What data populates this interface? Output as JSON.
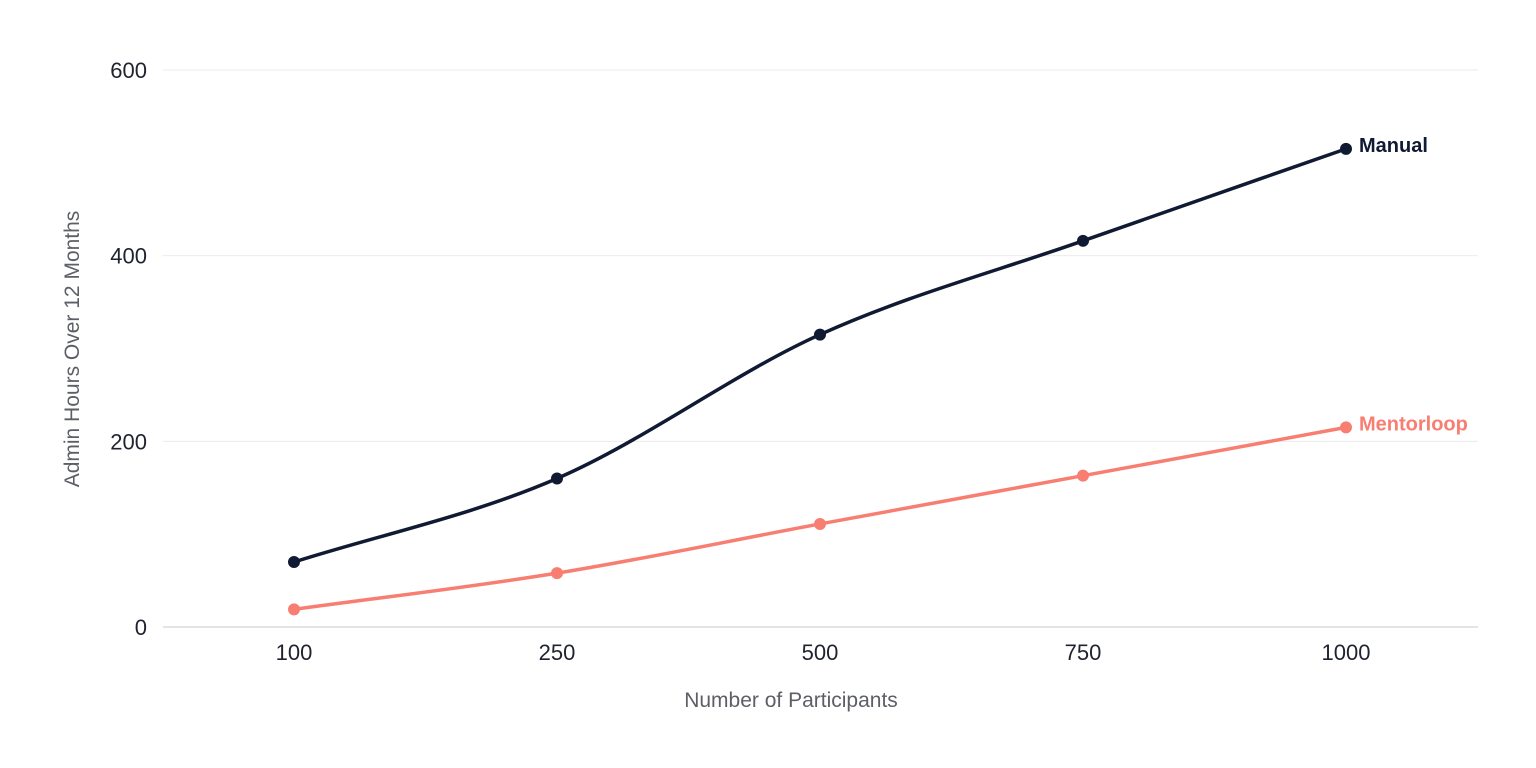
{
  "chart_data": {
    "type": "line",
    "xlabel": "Number of Participants",
    "ylabel": "Admin Hours Over 12 Months",
    "categories": [
      "100",
      "250",
      "500",
      "750",
      "1000"
    ],
    "ylim": [
      0,
      600
    ],
    "yticks": [
      0,
      200,
      400,
      600
    ],
    "grid": true,
    "legend": "inline-right",
    "series": [
      {
        "name": "Manual",
        "color": "#101a33",
        "values": [
          70,
          160,
          315,
          416,
          515
        ]
      },
      {
        "name": "Mentorloop",
        "color": "#f87e72",
        "values": [
          19,
          58,
          111,
          163,
          215
        ]
      }
    ]
  }
}
